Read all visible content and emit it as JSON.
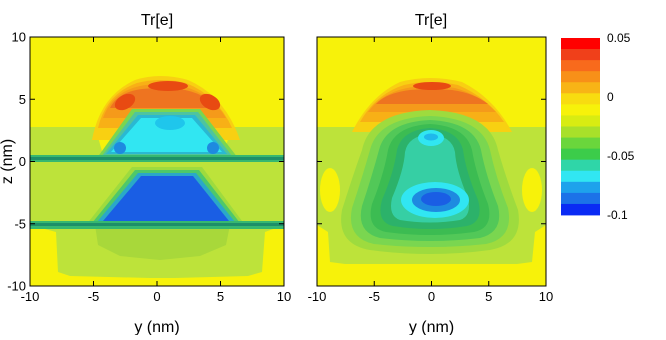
{
  "chart_data": {
    "type": "heatmap",
    "panels": [
      {
        "title": "Tr[e]",
        "xlabel": "y (nm)",
        "ylabel": "z (nm)",
        "xlim": [
          -10,
          10
        ],
        "ylim": [
          -10,
          10
        ],
        "xticks": [
          "-10",
          "-5",
          "0",
          "5",
          "10"
        ],
        "yticks": [
          "-10",
          "-5",
          "0",
          "5",
          "10"
        ]
      },
      {
        "title": "Tr[e]",
        "xlabel": "y (nm)",
        "ylabel": "",
        "xlim": [
          -10,
          10
        ],
        "ylim": [
          -10,
          10
        ],
        "xticks": [
          "-10",
          "-5",
          "0",
          "5",
          "10"
        ],
        "yticks": []
      }
    ],
    "colorbar": {
      "range": [
        -0.1,
        0.05
      ],
      "tick_labels": [
        "0.05",
        "0",
        "-0.05",
        "-0.1"
      ],
      "tick_values": [
        0.05,
        0,
        -0.05,
        -0.1
      ],
      "levels": 16
    },
    "grid": false
  }
}
